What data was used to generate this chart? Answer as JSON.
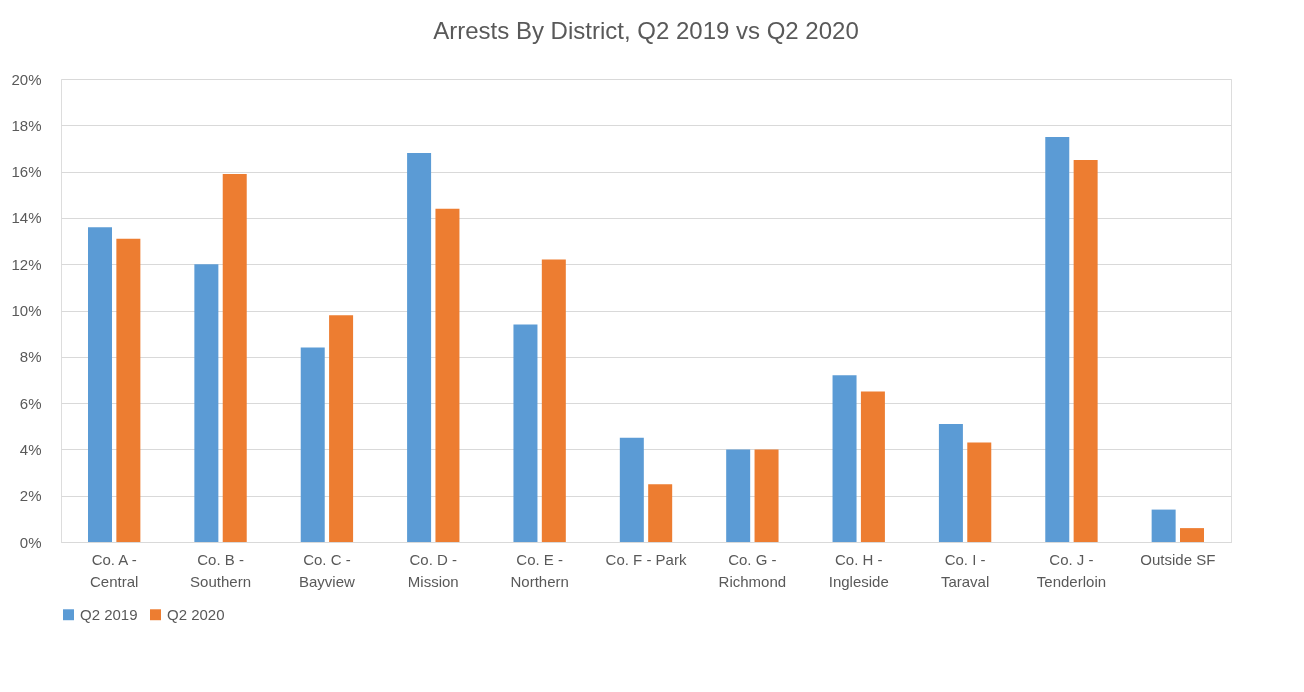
{
  "chart_data": {
    "type": "bar",
    "title": "Arrests By District, Q2 2019 vs Q2 2020",
    "categories": [
      "Co. A - Central",
      "Co. B - Southern",
      "Co. C - Bayview",
      "Co. D - Mission",
      "Co. E - Northern",
      "Co. F - Park",
      "Co. G - Richmond",
      "Co. H - Ingleside",
      "Co. I - Taraval",
      "Co. J - Tenderloin",
      "Outside SF"
    ],
    "series": [
      {
        "name": "Q2 2019",
        "color": "#5b9bd5",
        "values": [
          13.6,
          12.0,
          8.4,
          16.8,
          9.4,
          4.5,
          4.0,
          7.2,
          5.1,
          17.5,
          1.4
        ]
      },
      {
        "name": "Q2 2020",
        "color": "#ed7d31",
        "values": [
          13.1,
          15.9,
          9.8,
          14.4,
          12.2,
          2.5,
          4.0,
          6.5,
          4.3,
          16.5,
          0.6
        ]
      }
    ],
    "ylim": [
      0,
      20
    ],
    "yticks": [
      {
        "value": 0,
        "label": "0%"
      },
      {
        "value": 2,
        "label": "2%"
      },
      {
        "value": 4,
        "label": "4%"
      },
      {
        "value": 6,
        "label": "6%"
      },
      {
        "value": 8,
        "label": "8%"
      },
      {
        "value": 10,
        "label": "10%"
      },
      {
        "value": 12,
        "label": "12%"
      },
      {
        "value": 14,
        "label": "14%"
      },
      {
        "value": 16,
        "label": "16%"
      },
      {
        "value": 18,
        "label": "18%"
      },
      {
        "value": 20,
        "label": "20%"
      }
    ],
    "grid": "y",
    "legend": "bottom"
  }
}
